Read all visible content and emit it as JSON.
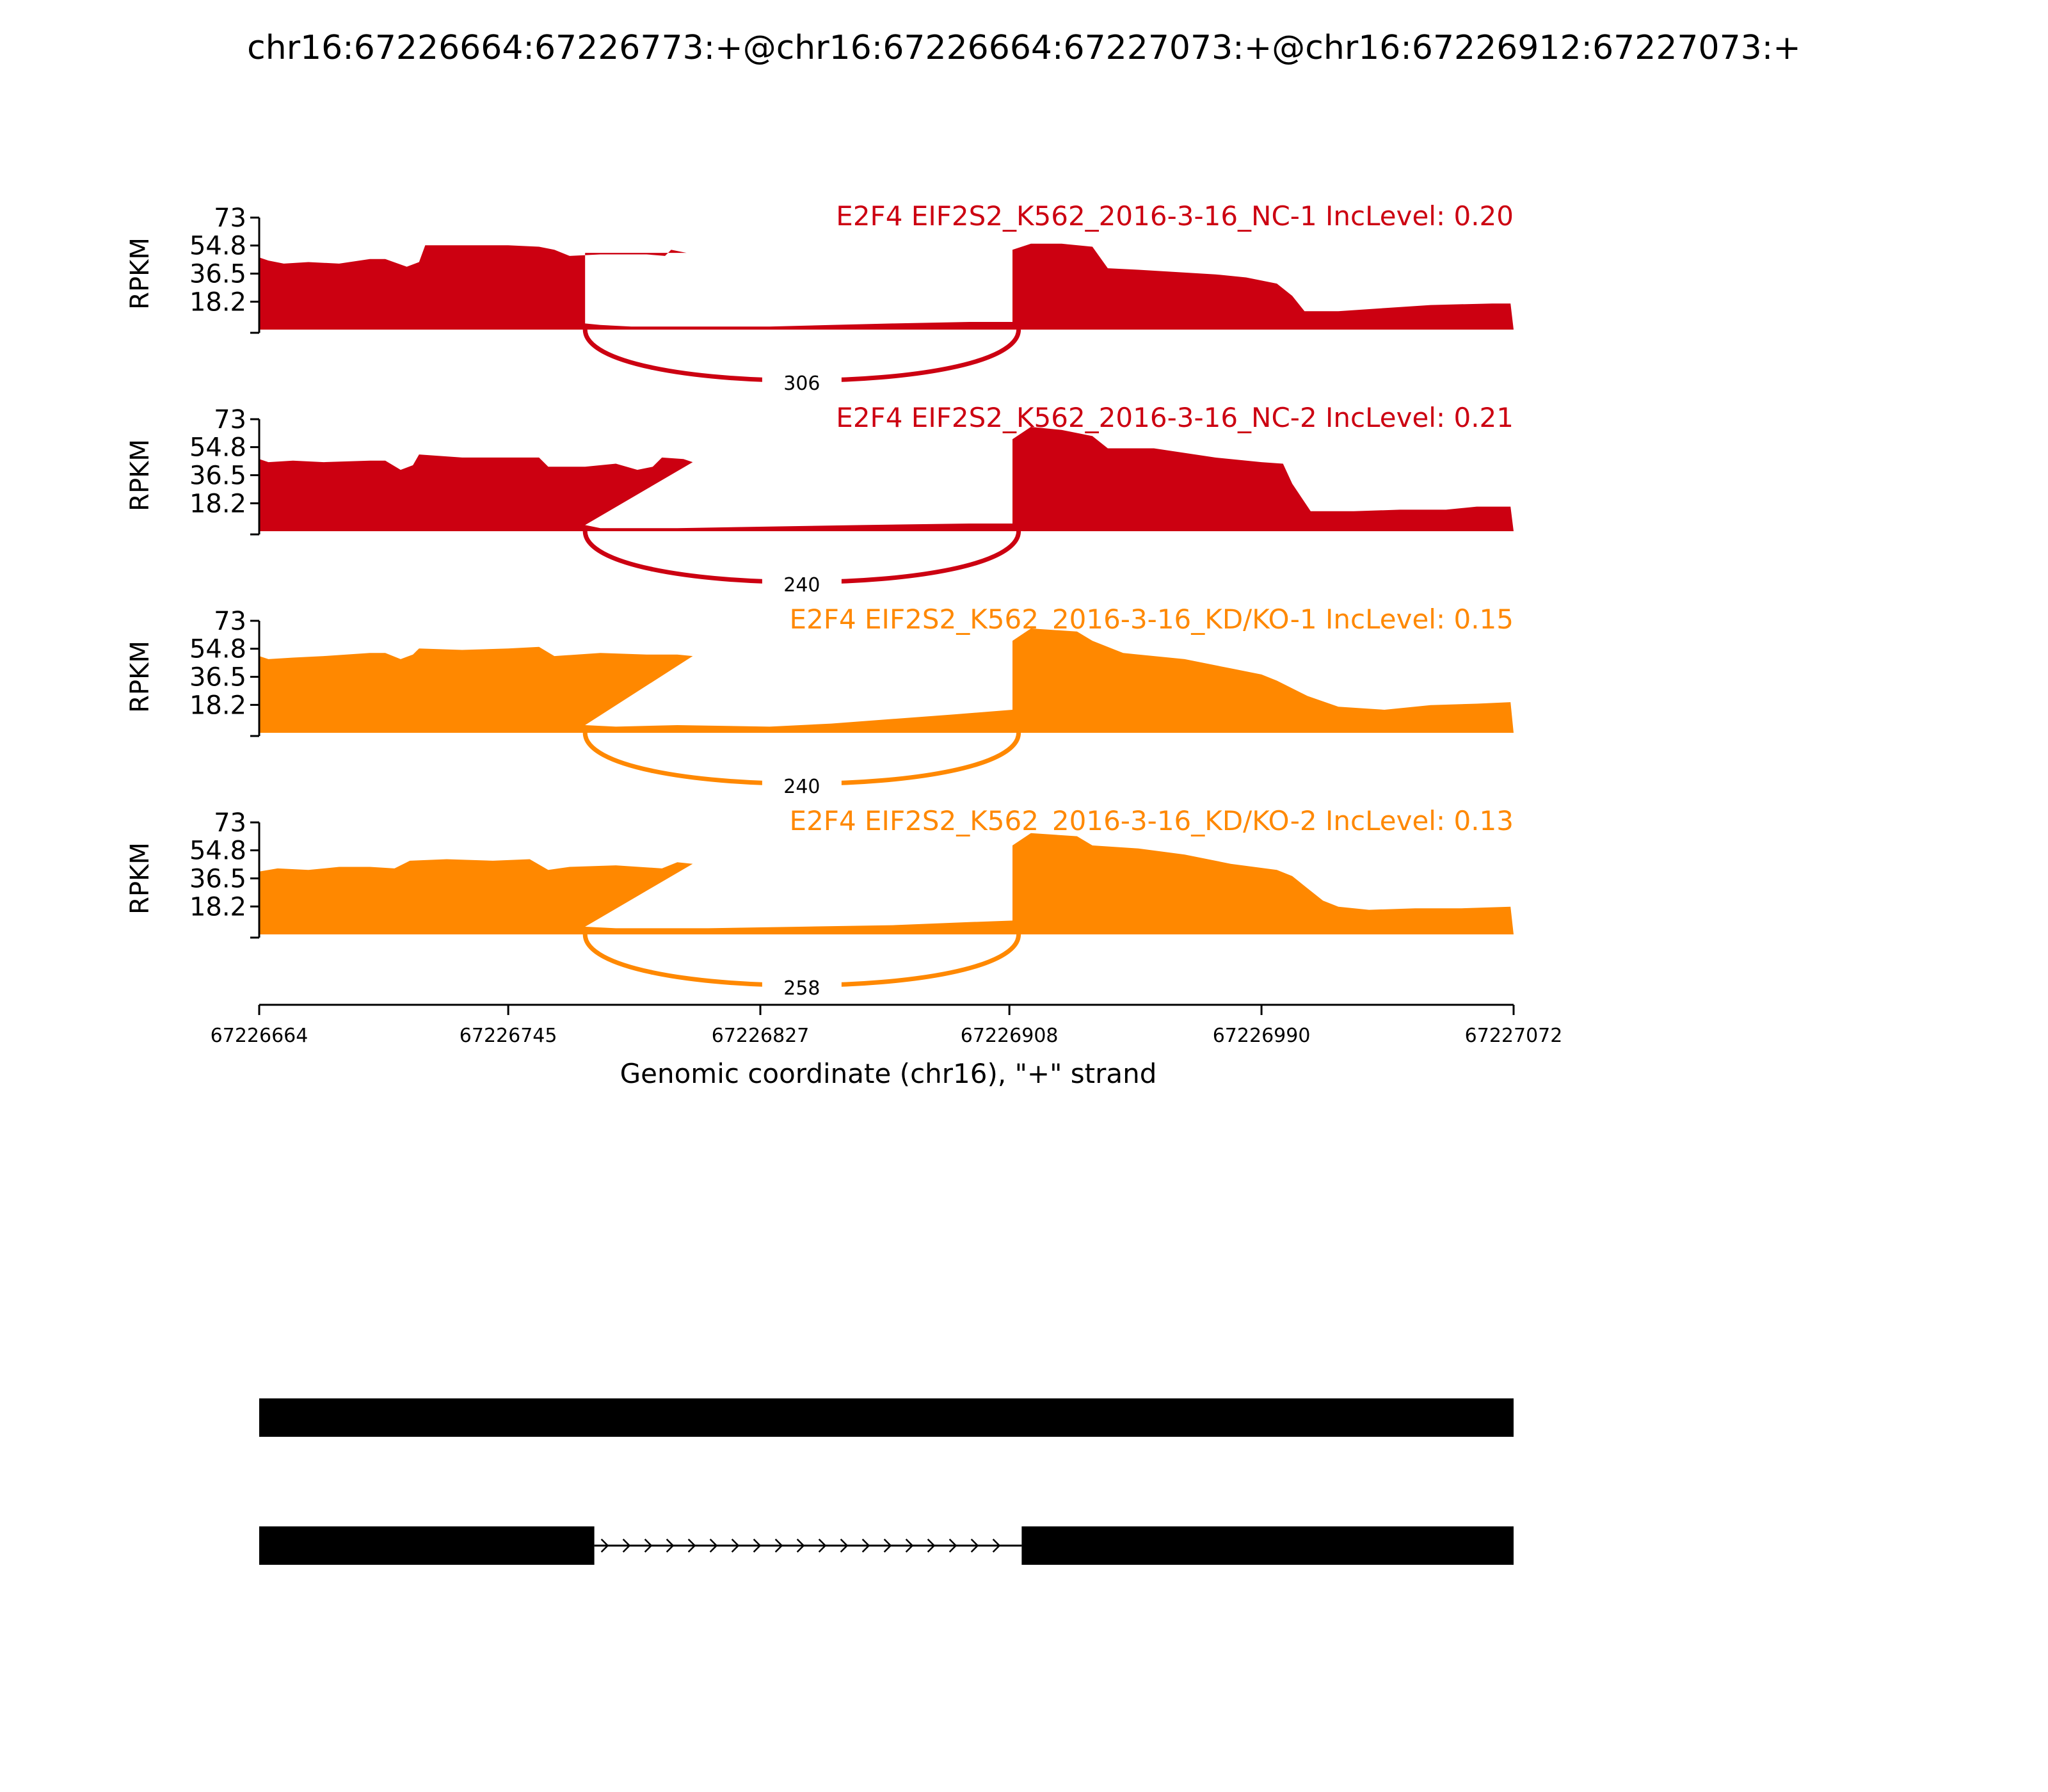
{
  "title": "chr16:67226664:67226773:+@chr16:67226664:67227073:+@chr16:67226912:67227073:+",
  "colors": {
    "nc": "#cc0011",
    "kd": "#ff8800",
    "axis": "#000000",
    "gene": "#000000"
  },
  "chart_data": {
    "type": "area",
    "xlabel": "Genomic coordinate (chr16), \"+\" strand",
    "xlim": [
      67226664,
      67227072
    ],
    "xticks": [
      67226664,
      67226745,
      67226827,
      67226908,
      67226990,
      67227072
    ],
    "xtick_labels": [
      "67226664",
      "67226745",
      "67226827",
      "67226908",
      "67226990",
      "67227072"
    ],
    "ylabel": "RPKM",
    "ylim": [
      0,
      73
    ],
    "yticks": [
      18.2,
      36.5,
      54.8,
      73
    ],
    "ytick_labels": [
      "18.2",
      "36.5",
      "54.8",
      "73"
    ],
    "series": [
      {
        "name": "E2F4 EIF2S2_K562_2016-3-16_NC-1 IncLevel: 0.20",
        "color_key": "nc",
        "junction": {
          "start": 67226770,
          "end": 67226911,
          "count": "306"
        },
        "coverage": [
          [
            67226664,
            47
          ],
          [
            67226667,
            45
          ],
          [
            67226672,
            43
          ],
          [
            67226680,
            44
          ],
          [
            67226690,
            43
          ],
          [
            67226700,
            46
          ],
          [
            67226705,
            46
          ],
          [
            67226712,
            41
          ],
          [
            67226716,
            44
          ],
          [
            67226718,
            55
          ],
          [
            67226730,
            55
          ],
          [
            67226745,
            55
          ],
          [
            67226755,
            54
          ],
          [
            67226760,
            52
          ],
          [
            67226765,
            48
          ],
          [
            67226775,
            49
          ],
          [
            67226790,
            49
          ],
          [
            67226796,
            48
          ],
          [
            67226798,
            52
          ],
          [
            67226803,
            50
          ],
          [
            67226770,
            50
          ],
          [
            67226770,
            4
          ],
          [
            67226775,
            3
          ],
          [
            67226785,
            2
          ],
          [
            67226800,
            2
          ],
          [
            67226830,
            2
          ],
          [
            67226850,
            3
          ],
          [
            67226870,
            4
          ],
          [
            67226895,
            5
          ],
          [
            67226909,
            5
          ],
          [
            67226909,
            52
          ],
          [
            67226915,
            56
          ],
          [
            67226925,
            56
          ],
          [
            67226935,
            54
          ],
          [
            67226940,
            40
          ],
          [
            67226950,
            39
          ],
          [
            67226975,
            36
          ],
          [
            67226985,
            34
          ],
          [
            67226995,
            30
          ],
          [
            67227000,
            22
          ],
          [
            67227004,
            12
          ],
          [
            67227015,
            12
          ],
          [
            67227030,
            14
          ],
          [
            67227045,
            16
          ],
          [
            67227065,
            17
          ],
          [
            67227071,
            17
          ],
          [
            67227072,
            0
          ]
        ]
      },
      {
        "name": "E2F4 EIF2S2_K562_2016-3-16_NC-2 IncLevel: 0.21",
        "color_key": "nc",
        "junction": {
          "start": 67226770,
          "end": 67226911,
          "count": "240"
        },
        "coverage": [
          [
            67226664,
            47
          ],
          [
            67226667,
            45
          ],
          [
            67226675,
            46
          ],
          [
            67226685,
            45
          ],
          [
            67226700,
            46
          ],
          [
            67226705,
            46
          ],
          [
            67226710,
            40
          ],
          [
            67226714,
            43
          ],
          [
            67226716,
            50
          ],
          [
            67226730,
            48
          ],
          [
            67226750,
            48
          ],
          [
            67226755,
            48
          ],
          [
            67226758,
            42
          ],
          [
            67226770,
            42
          ],
          [
            67226780,
            44
          ],
          [
            67226787,
            40
          ],
          [
            67226792,
            42
          ],
          [
            67226795,
            48
          ],
          [
            67226802,
            47
          ],
          [
            67226805,
            45
          ],
          [
            67226770,
            4
          ],
          [
            67226775,
            2
          ],
          [
            67226800,
            2
          ],
          [
            67226830,
            3
          ],
          [
            67226860,
            4
          ],
          [
            67226895,
            5
          ],
          [
            67226909,
            5
          ],
          [
            67226909,
            60
          ],
          [
            67226915,
            68
          ],
          [
            67226925,
            66
          ],
          [
            67226935,
            62
          ],
          [
            67226940,
            54
          ],
          [
            67226955,
            54
          ],
          [
            67226975,
            48
          ],
          [
            67226990,
            45
          ],
          [
            67226997,
            44
          ],
          [
            67227000,
            31
          ],
          [
            67227003,
            22
          ],
          [
            67227006,
            13
          ],
          [
            67227020,
            13
          ],
          [
            67227035,
            14
          ],
          [
            67227050,
            14
          ],
          [
            67227060,
            16
          ],
          [
            67227071,
            16
          ],
          [
            67227072,
            0
          ]
        ]
      },
      {
        "name": "E2F4 EIF2S2_K562_2016-3-16_KD/KO-1 IncLevel: 0.15",
        "color_key": "kd",
        "junction": {
          "start": 67226770,
          "end": 67226911,
          "count": "240"
        },
        "coverage": [
          [
            67226664,
            50
          ],
          [
            67226667,
            48
          ],
          [
            67226675,
            49
          ],
          [
            67226685,
            50
          ],
          [
            67226700,
            52
          ],
          [
            67226705,
            52
          ],
          [
            67226710,
            48
          ],
          [
            67226714,
            51
          ],
          [
            67226716,
            55
          ],
          [
            67226730,
            54
          ],
          [
            67226745,
            55
          ],
          [
            67226755,
            56
          ],
          [
            67226760,
            50
          ],
          [
            67226775,
            52
          ],
          [
            67226790,
            51
          ],
          [
            67226800,
            51
          ],
          [
            67226805,
            50
          ],
          [
            67226770,
            5
          ],
          [
            67226780,
            4
          ],
          [
            67226800,
            5
          ],
          [
            67226830,
            4
          ],
          [
            67226850,
            6
          ],
          [
            67226870,
            9
          ],
          [
            67226890,
            12
          ],
          [
            67226909,
            15
          ],
          [
            67226909,
            60
          ],
          [
            67226915,
            68
          ],
          [
            67226930,
            66
          ],
          [
            67226935,
            60
          ],
          [
            67226945,
            52
          ],
          [
            67226965,
            48
          ],
          [
            67226980,
            42
          ],
          [
            67226990,
            38
          ],
          [
            67226995,
            34
          ],
          [
            67227005,
            24
          ],
          [
            67227015,
            17
          ],
          [
            67227030,
            15
          ],
          [
            67227045,
            18
          ],
          [
            67227060,
            19
          ],
          [
            67227071,
            20
          ],
          [
            67227072,
            0
          ]
        ]
      },
      {
        "name": "E2F4 EIF2S2_K562_2016-3-16_KD/KO-2 IncLevel: 0.13",
        "color_key": "kd",
        "junction": {
          "start": 67226770,
          "end": 67226911,
          "count": "258"
        },
        "coverage": [
          [
            67226664,
            41
          ],
          [
            67226670,
            43
          ],
          [
            67226680,
            42
          ],
          [
            67226690,
            44
          ],
          [
            67226700,
            44
          ],
          [
            67226708,
            43
          ],
          [
            67226713,
            48
          ],
          [
            67226725,
            49
          ],
          [
            67226740,
            48
          ],
          [
            67226752,
            49
          ],
          [
            67226758,
            42
          ],
          [
            67226765,
            44
          ],
          [
            67226780,
            45
          ],
          [
            67226795,
            43
          ],
          [
            67226800,
            47
          ],
          [
            67226805,
            46
          ],
          [
            67226770,
            5
          ],
          [
            67226780,
            4
          ],
          [
            67226810,
            4
          ],
          [
            67226840,
            5
          ],
          [
            67226870,
            6
          ],
          [
            67226895,
            8
          ],
          [
            67226909,
            9
          ],
          [
            67226909,
            58
          ],
          [
            67226915,
            66
          ],
          [
            67226930,
            64
          ],
          [
            67226935,
            58
          ],
          [
            67226950,
            56
          ],
          [
            67226965,
            52
          ],
          [
            67226980,
            46
          ],
          [
            67226995,
            42
          ],
          [
            67227000,
            38
          ],
          [
            67227005,
            30
          ],
          [
            67227010,
            22
          ],
          [
            67227015,
            18
          ],
          [
            67227025,
            16
          ],
          [
            67227040,
            17
          ],
          [
            67227055,
            17
          ],
          [
            67227071,
            18
          ],
          [
            67227072,
            0
          ]
        ]
      }
    ]
  },
  "gene_model": {
    "transcripts": [
      {
        "exons": [
          [
            67226664,
            67227072
          ]
        ],
        "introns": []
      },
      {
        "exons": [
          [
            67226664,
            67226773
          ],
          [
            67226912,
            67227072
          ]
        ],
        "introns": [
          [
            67226773,
            67226912
          ]
        ]
      }
    ]
  }
}
